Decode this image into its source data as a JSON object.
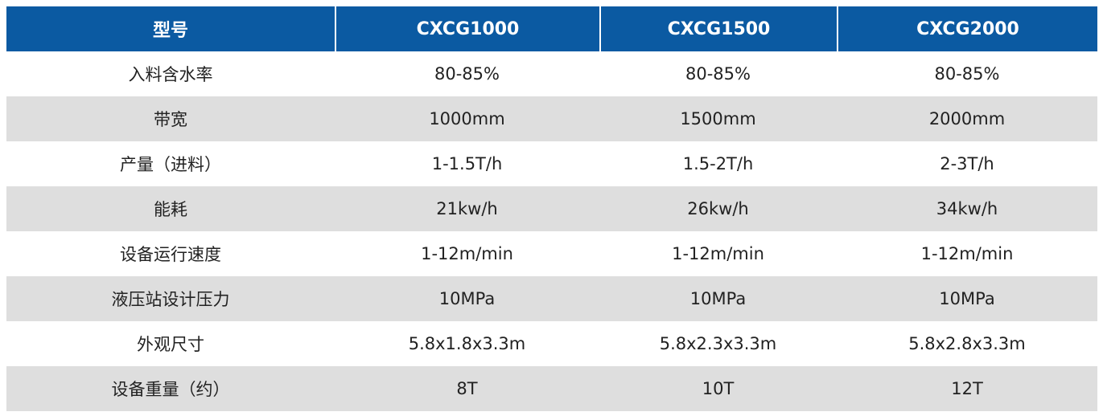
{
  "table": {
    "header": [
      "型号",
      "CXCG1000",
      "CXCG1500",
      "CXCG2000"
    ],
    "rows": [
      [
        "入料含水率",
        "80-85%",
        "80-85%",
        "80-85%"
      ],
      [
        "带宽",
        "1000mm",
        "1500mm",
        "2000mm"
      ],
      [
        "产量（进料）",
        "1-1.5T/h",
        "1.5-2T/h",
        "2-3T/h"
      ],
      [
        "能耗",
        "21kw/h",
        "26kw/h",
        "34kw/h"
      ],
      [
        "设备运行速度",
        "1-12m/min",
        "1-12m/min",
        "1-12m/min"
      ],
      [
        "液压站设计压力",
        "10MPa",
        "10MPa",
        "10MPa"
      ],
      [
        "外观尺寸",
        "5.8x1.8x3.3m",
        "5.8x2.3x3.3m",
        "5.8x2.8x3.3m"
      ],
      [
        "设备重量（约）",
        "8T",
        "10T",
        "12T"
      ]
    ]
  }
}
